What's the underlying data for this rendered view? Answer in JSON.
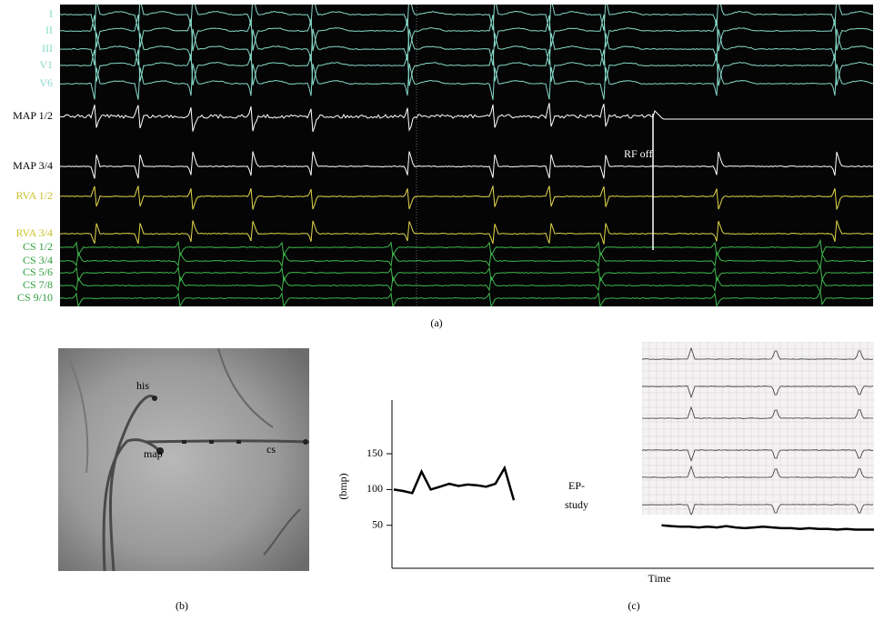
{
  "panel_a": {
    "channels": [
      {
        "label": "I",
        "color": "#86d9c9"
      },
      {
        "label": "II",
        "color": "#86d9c9"
      },
      {
        "label": "III",
        "color": "#86d9c9"
      },
      {
        "label": "V1",
        "color": "#86d9c9"
      },
      {
        "label": "V6",
        "color": "#86d9c9"
      },
      {
        "label": "MAP 1/2",
        "color": "#000000"
      },
      {
        "label": "MAP 3/4",
        "color": "#000000"
      },
      {
        "label": "RVA 1/2",
        "color": "#c9c12a"
      },
      {
        "label": "RVA 3/4",
        "color": "#c9c12a"
      },
      {
        "label": "CS 1/2",
        "color": "#2e9d3c"
      },
      {
        "label": "CS 3/4",
        "color": "#2e9d3c"
      },
      {
        "label": "CS 5/6",
        "color": "#2e9d3c"
      },
      {
        "label": "CS 7/8",
        "color": "#2e9d3c"
      },
      {
        "label": "CS 9/10",
        "color": "#2e9d3c"
      }
    ],
    "annotation": "RF off",
    "caption": "(a)"
  },
  "panel_b": {
    "labels": [
      "his",
      "map",
      "cs"
    ],
    "caption": "(b)"
  },
  "chart_data": {
    "type": "line",
    "y_label": "(bmp)",
    "x_label": "Time",
    "annotation": [
      "EP-",
      "study"
    ],
    "caption": "(c)",
    "ylim": [
      -10,
      225
    ],
    "yticks": [
      50,
      100,
      150
    ],
    "color": "#000000",
    "values": [
      100,
      98,
      95,
      125,
      100,
      104,
      108,
      105,
      107,
      106,
      104,
      108,
      130,
      85,
      null,
      null,
      null,
      null,
      null,
      null,
      null,
      null,
      null,
      null,
      null,
      null,
      null,
      null,
      null,
      50,
      49,
      48,
      48,
      47,
      48,
      47,
      49,
      47,
      46,
      47,
      48,
      47,
      46,
      46,
      45,
      46,
      45,
      45,
      44,
      45,
      44,
      44,
      44
    ]
  }
}
